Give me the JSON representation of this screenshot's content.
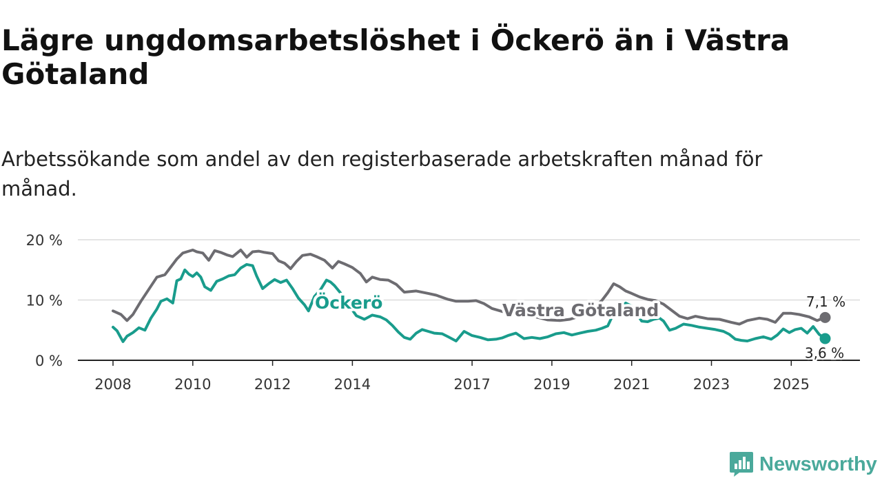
{
  "title": "Lägre ungdomsarbetslöshet i Öckerö än i Västra Götaland",
  "subtitle": "Arbetssökande som andel av den registerbaserade arbetskraften månad för månad.",
  "brand": {
    "name": "Newsworthy",
    "icon": "newsworthy-logo-icon",
    "color": "#4aa99b"
  },
  "chart_data": {
    "type": "line",
    "title": "Lägre ungdomsarbetslöshet i Öckerö än i Västra Götaland",
    "xlabel": "",
    "ylabel": "",
    "xlim": [
      2008,
      2026.3
    ],
    "ylim": [
      0,
      20
    ],
    "grid": true,
    "x_ticks": [
      2008,
      2010,
      2012,
      2014,
      2017,
      2019,
      2021,
      2023,
      2025
    ],
    "x_tick_labels": [
      "2008",
      "2010",
      "2012",
      "2014",
      "2017",
      "2019",
      "2021",
      "2023",
      "2025"
    ],
    "y_ticks": [
      0,
      10,
      20
    ],
    "y_tick_labels": [
      "0 %",
      "10 %",
      "20 %"
    ],
    "series": [
      {
        "name": "Västra Götaland",
        "color": "#6d6c71",
        "x": [
          2008.0,
          2008.2,
          2008.35,
          2008.5,
          2008.7,
          2008.9,
          2009.1,
          2009.3,
          2009.45,
          2009.6,
          2009.75,
          2009.9,
          2010.0,
          2010.1,
          2010.25,
          2010.4,
          2010.55,
          2010.7,
          2010.85,
          2011.0,
          2011.2,
          2011.35,
          2011.5,
          2011.65,
          2011.8,
          2012.0,
          2012.15,
          2012.3,
          2012.45,
          2012.6,
          2012.75,
          2012.95,
          2013.1,
          2013.3,
          2013.5,
          2013.65,
          2013.8,
          2014.0,
          2014.2,
          2014.35,
          2014.5,
          2014.7,
          2014.9,
          2015.1,
          2015.3,
          2015.6,
          2015.9,
          2016.1,
          2016.4,
          2016.6,
          2016.9,
          2017.1,
          2017.3,
          2017.5,
          2017.75,
          2018.0,
          2018.3,
          2018.6,
          2018.9,
          2019.2,
          2019.45,
          2019.7,
          2019.9,
          2020.1,
          2020.25,
          2020.4,
          2020.55,
          2020.7,
          2020.85,
          2021.0,
          2021.2,
          2021.4,
          2021.6,
          2021.8,
          2022.0,
          2022.2,
          2022.4,
          2022.6,
          2022.9,
          2023.2,
          2023.5,
          2023.7,
          2023.9,
          2024.2,
          2024.4,
          2024.6,
          2024.8,
          2025.0,
          2025.2,
          2025.45,
          2025.65,
          2025.85
        ],
        "values": [
          8.2,
          7.6,
          6.6,
          7.6,
          9.8,
          11.8,
          13.8,
          14.2,
          15.5,
          16.8,
          17.8,
          18.1,
          18.3,
          18.0,
          17.8,
          16.6,
          18.2,
          17.9,
          17.5,
          17.2,
          18.3,
          17.1,
          18.0,
          18.1,
          17.9,
          17.7,
          16.5,
          16.1,
          15.2,
          16.4,
          17.4,
          17.6,
          17.2,
          16.6,
          15.3,
          16.4,
          16.0,
          15.4,
          14.4,
          13.0,
          13.8,
          13.4,
          13.3,
          12.6,
          11.3,
          11.5,
          11.1,
          10.8,
          10.1,
          9.8,
          9.8,
          9.9,
          9.4,
          8.6,
          8.1,
          7.9,
          7.6,
          7.2,
          6.7,
          6.6,
          6.8,
          7.3,
          8.5,
          9.1,
          9.9,
          11.2,
          12.7,
          12.2,
          11.5,
          11.1,
          10.5,
          10.1,
          9.9,
          9.3,
          8.3,
          7.3,
          6.9,
          7.3,
          6.9,
          6.8,
          6.3,
          6.0,
          6.6,
          7.0,
          6.8,
          6.3,
          7.8,
          7.8,
          7.6,
          7.2,
          6.6,
          7.1
        ]
      },
      {
        "name": "Öckerö",
        "color": "#199c8c",
        "x": [
          2008.0,
          2008.1,
          2008.25,
          2008.35,
          2008.5,
          2008.65,
          2008.8,
          2008.95,
          2009.1,
          2009.2,
          2009.35,
          2009.5,
          2009.6,
          2009.7,
          2009.8,
          2009.9,
          2010.0,
          2010.1,
          2010.2,
          2010.3,
          2010.45,
          2010.6,
          2010.75,
          2010.9,
          2011.05,
          2011.2,
          2011.35,
          2011.5,
          2011.6,
          2011.75,
          2011.9,
          2012.05,
          2012.2,
          2012.35,
          2012.5,
          2012.65,
          2012.8,
          2012.9,
          2013.05,
          2013.2,
          2013.35,
          2013.45,
          2013.55,
          2013.7,
          2013.8,
          2013.95,
          2014.1,
          2014.3,
          2014.5,
          2014.7,
          2014.85,
          2015.0,
          2015.15,
          2015.3,
          2015.45,
          2015.6,
          2015.75,
          2015.9,
          2016.05,
          2016.25,
          2016.4,
          2016.6,
          2016.8,
          2017.0,
          2017.2,
          2017.4,
          2017.6,
          2017.75,
          2017.9,
          2018.1,
          2018.3,
          2018.5,
          2018.7,
          2018.9,
          2019.1,
          2019.3,
          2019.5,
          2019.7,
          2019.9,
          2020.1,
          2020.25,
          2020.4,
          2020.55,
          2020.7,
          2020.85,
          2021.0,
          2021.1,
          2021.25,
          2021.4,
          2021.55,
          2021.7,
          2021.8,
          2021.95,
          2022.1,
          2022.3,
          2022.5,
          2022.7,
          2022.9,
          2023.1,
          2023.3,
          2023.45,
          2023.6,
          2023.75,
          2023.9,
          2024.1,
          2024.3,
          2024.5,
          2024.65,
          2024.8,
          2024.95,
          2025.1,
          2025.25,
          2025.4,
          2025.55,
          2025.7,
          2025.85
        ],
        "values": [
          5.5,
          4.9,
          3.1,
          4.0,
          4.6,
          5.4,
          5.0,
          7.0,
          8.5,
          9.8,
          10.2,
          9.5,
          13.2,
          13.5,
          15.0,
          14.3,
          13.9,
          14.5,
          13.8,
          12.2,
          11.6,
          13.1,
          13.5,
          14.0,
          14.2,
          15.3,
          15.9,
          15.7,
          14.0,
          11.9,
          12.7,
          13.4,
          12.9,
          13.3,
          11.9,
          10.3,
          9.2,
          8.2,
          10.6,
          11.7,
          13.3,
          13.0,
          12.4,
          11.2,
          10.3,
          8.8,
          7.4,
          6.8,
          7.5,
          7.2,
          6.7,
          5.8,
          4.7,
          3.8,
          3.5,
          4.5,
          5.1,
          4.8,
          4.5,
          4.4,
          3.9,
          3.2,
          4.8,
          4.1,
          3.8,
          3.4,
          3.5,
          3.7,
          4.1,
          4.5,
          3.6,
          3.8,
          3.6,
          3.9,
          4.4,
          4.6,
          4.2,
          4.5,
          4.8,
          5.0,
          5.3,
          5.7,
          7.8,
          8.5,
          9.5,
          9.0,
          8.0,
          6.5,
          6.4,
          6.8,
          7.0,
          6.5,
          5.0,
          5.3,
          6.0,
          5.8,
          5.5,
          5.3,
          5.1,
          4.8,
          4.3,
          3.5,
          3.3,
          3.2,
          3.6,
          3.9,
          3.5,
          4.2,
          5.2,
          4.6,
          5.1,
          5.3,
          4.5,
          5.6,
          4.3,
          3.6
        ]
      }
    ],
    "annotations": [
      {
        "text": "Öckerö",
        "series": "Öckerö"
      },
      {
        "text": "Västra Götaland",
        "series": "Västra Götaland"
      },
      {
        "text": "7,1 %",
        "series": "Västra Götaland",
        "value": 7.1
      },
      {
        "text": "3,6 %",
        "series": "Öckerö",
        "value": 3.6
      }
    ]
  }
}
